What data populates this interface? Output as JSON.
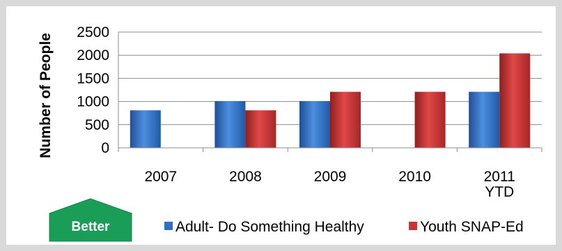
{
  "chart_data": {
    "type": "bar",
    "categories": [
      "2007",
      "2008",
      "2009",
      "2010",
      "2011 YTD"
    ],
    "category_lines": [
      [
        "2007"
      ],
      [
        "2008"
      ],
      [
        "2009"
      ],
      [
        "2010"
      ],
      [
        "2011",
        "YTD"
      ]
    ],
    "series": [
      {
        "name": "Adult- Do Something Healthy",
        "color": "#2f6fc4",
        "values": [
          810,
          1010,
          1010,
          null,
          1210
        ]
      },
      {
        "name": "Youth SNAP-Ed",
        "color": "#c93434",
        "values": [
          null,
          810,
          1210,
          1210,
          2040
        ]
      }
    ],
    "ylabel": "Number of People",
    "ylim": [
      0,
      2500
    ],
    "yticks": [
      0,
      500,
      1000,
      1500,
      2000,
      2500
    ],
    "grid": true,
    "legend_position": "bottom"
  },
  "badge": {
    "label": "Better",
    "color": "#1a9e57"
  }
}
